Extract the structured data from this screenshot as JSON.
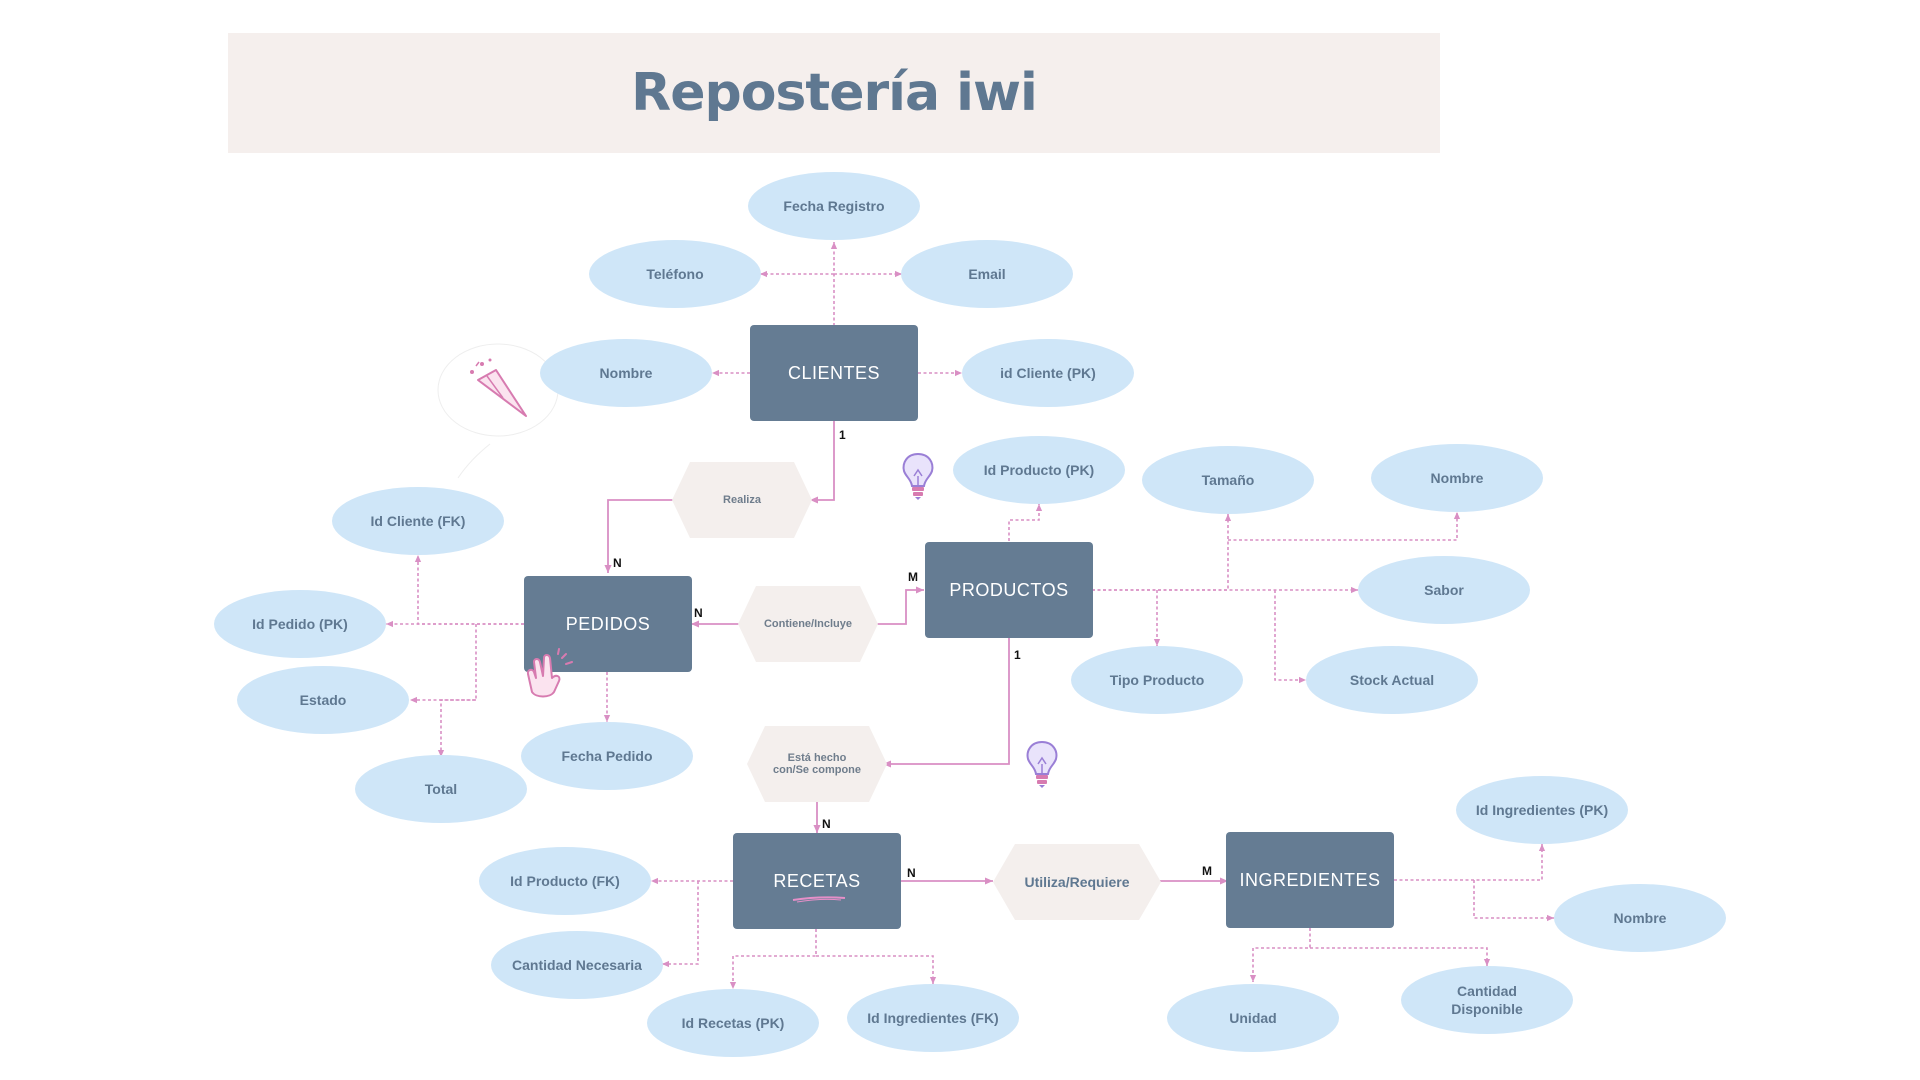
{
  "title": "Repostería iwi",
  "colors": {
    "entity_fill": "#657c93",
    "attribute_fill": "#cfe6f8",
    "relationship_fill": "#f4efed",
    "connector": "#d98fc4",
    "title_banner": "#f5efed",
    "title_text": "#5f7891"
  },
  "entities": {
    "clientes": "CLIENTES",
    "pedidos": "PEDIDOS",
    "productos": "PRODUCTOS",
    "recetas": "RECETAS",
    "ingredientes": "INGREDIENTES"
  },
  "relationships": {
    "realiza": "Realiza",
    "contiene": "Contiene/Incluye",
    "esta_hecho": "Está hecho\ncon/Se compone",
    "utiliza": "Utiliza/Requiere"
  },
  "attributes": {
    "clientes": {
      "fecha_registro": "Fecha Registro",
      "telefono": "Teléfono",
      "email": "Email",
      "nombre": "Nombre",
      "id_cliente": "id Cliente (PK)"
    },
    "pedidos": {
      "id_cliente_fk": "Id Cliente (FK)",
      "id_pedido": "Id Pedido (PK)",
      "estado": "Estado",
      "total": "Total",
      "fecha_pedido": "Fecha Pedido"
    },
    "productos": {
      "id_producto": "Id Producto (PK)",
      "tamano": "Tamaño",
      "nombre": "Nombre",
      "sabor": "Sabor",
      "tipo_producto": "Tipo Producto",
      "stock_actual": "Stock Actual"
    },
    "recetas": {
      "id_producto_fk": "Id Producto (FK)",
      "cantidad_necesaria": "Cantidad Necesaria",
      "id_recetas": "Id Recetas (PK)",
      "id_ingredientes_fk": "Id Ingredientes (FK)"
    },
    "ingredientes": {
      "id_ingredientes": "Id Ingredientes (PK)",
      "nombre": "Nombre",
      "unidad": "Unidad",
      "cantidad_disponible": "Cantidad\nDisponible"
    }
  },
  "cardinalities": {
    "clientes_realiza": "1",
    "pedidos_realiza": "N",
    "pedidos_contiene": "N",
    "productos_contiene": "M",
    "productos_esta": "1",
    "recetas_esta": "N",
    "recetas_utiliza": "N",
    "ingredientes_utiliza": "M"
  },
  "icons": [
    "party-popper-icon",
    "lightbulb-icon",
    "lightbulb-icon",
    "clapping-hands-icon"
  ]
}
